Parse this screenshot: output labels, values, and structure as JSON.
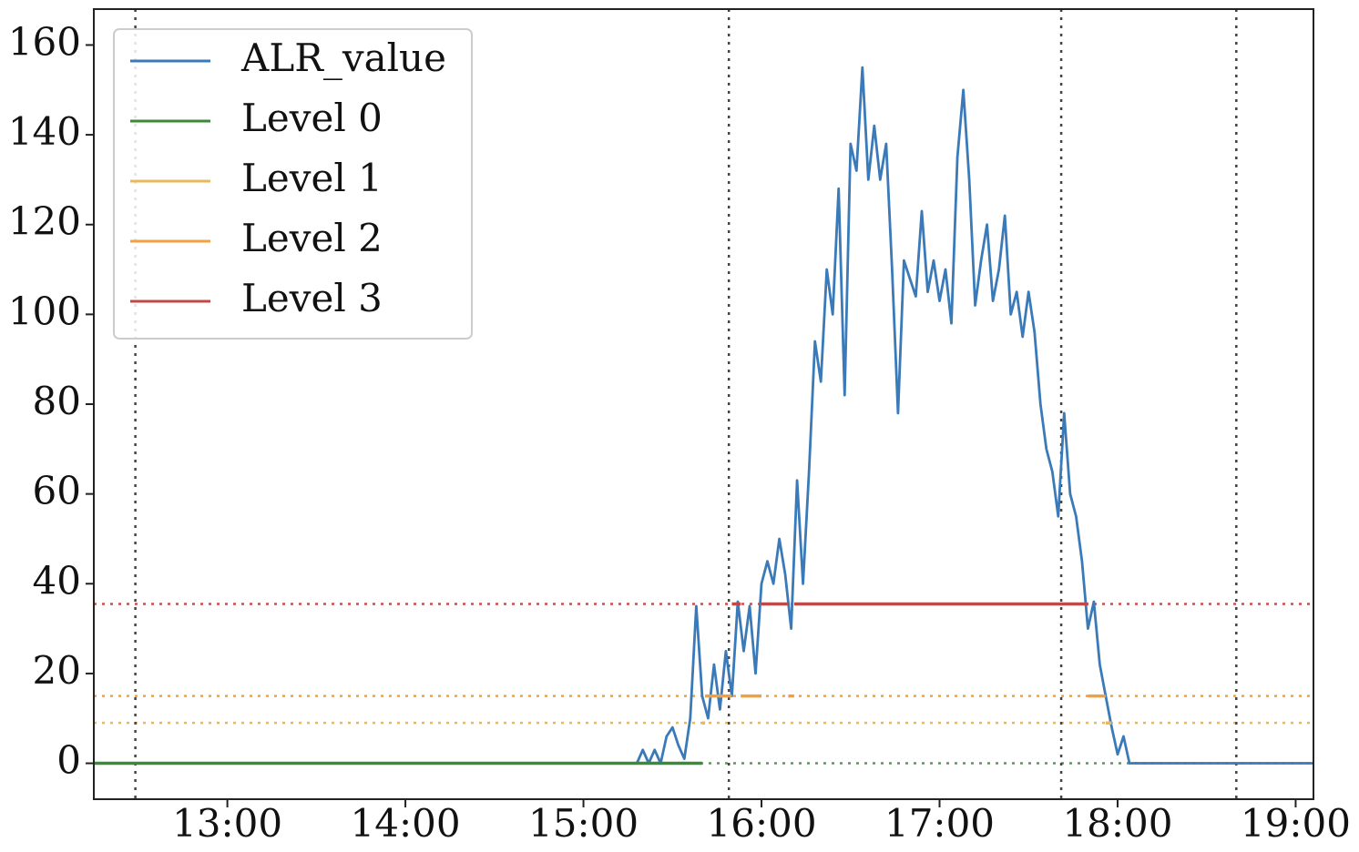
{
  "chart_data": {
    "type": "line",
    "xlim": [
      "12:15",
      "19:06"
    ],
    "xticks": [
      "13:00",
      "14:00",
      "15:00",
      "16:00",
      "17:00",
      "18:00",
      "19:00"
    ],
    "ylim": [
      -8,
      168
    ],
    "yticks": [
      0,
      20,
      40,
      60,
      80,
      100,
      120,
      140,
      160
    ],
    "legend": "upper left",
    "thresholds": [
      {
        "value": 0,
        "color": "#5a9a5a"
      },
      {
        "value": 9,
        "color": "#e8b85a"
      },
      {
        "value": 15,
        "color": "#f0a040"
      },
      {
        "value": 35.5,
        "color": "#c85050"
      }
    ],
    "vlines": [
      "12:29",
      "15:49",
      "17:41",
      "18:40"
    ],
    "series": [
      {
        "name": "ALR_value",
        "color": "#3a7ab8",
        "x": [
          "12:15",
          "15:18",
          "15:20",
          "15:22",
          "15:24",
          "15:26",
          "15:28",
          "15:30",
          "15:32",
          "15:34",
          "15:36",
          "15:38",
          "15:40",
          "15:42",
          "15:44",
          "15:46",
          "15:48",
          "15:50",
          "15:52",
          "15:54",
          "15:56",
          "15:58",
          "16:00",
          "16:02",
          "16:04",
          "16:06",
          "16:08",
          "16:10",
          "16:12",
          "16:14",
          "16:16",
          "16:18",
          "16:20",
          "16:22",
          "16:24",
          "16:26",
          "16:28",
          "16:30",
          "16:32",
          "16:34",
          "16:36",
          "16:38",
          "16:40",
          "16:42",
          "16:44",
          "16:46",
          "16:48",
          "16:50",
          "16:52",
          "16:54",
          "16:56",
          "16:58",
          "17:00",
          "17:02",
          "17:04",
          "17:06",
          "17:08",
          "17:10",
          "17:12",
          "17:14",
          "17:16",
          "17:18",
          "17:20",
          "17:22",
          "17:24",
          "17:26",
          "17:28",
          "17:30",
          "17:32",
          "17:34",
          "17:36",
          "17:38",
          "17:40",
          "17:42",
          "17:44",
          "17:46",
          "17:48",
          "17:50",
          "17:52",
          "17:54",
          "17:56",
          "17:58",
          "18:00",
          "18:02",
          "18:04",
          "18:06",
          "19:06"
        ],
        "values": [
          0,
          0,
          3,
          0,
          3,
          0,
          6,
          8,
          4,
          1,
          10,
          35,
          15,
          10,
          22,
          12,
          25,
          15,
          36,
          25,
          35,
          20,
          40,
          45,
          40,
          50,
          42,
          30,
          63,
          40,
          65,
          94,
          85,
          110,
          100,
          128,
          82,
          138,
          132,
          155,
          130,
          142,
          130,
          138,
          110,
          78,
          112,
          108,
          104,
          123,
          105,
          112,
          103,
          110,
          98,
          135,
          150,
          130,
          102,
          112,
          120,
          103,
          110,
          122,
          100,
          105,
          95,
          105,
          96,
          80,
          70,
          65,
          55,
          78,
          60,
          55,
          45,
          30,
          36,
          22,
          15,
          8,
          2,
          6,
          0,
          0,
          0
        ]
      },
      {
        "name": "Level 0",
        "color": "#3a8a3a",
        "x": [
          "12:15",
          "15:40",
          "17:58",
          "19:06"
        ],
        "values": [
          0,
          0,
          null,
          0
        ]
      },
      {
        "name": "Level 1",
        "color": "#e8b85a",
        "x": [
          "15:40",
          "15:41",
          "15:41",
          "17:56",
          "17:58"
        ],
        "values": [
          9,
          9,
          null,
          9,
          9
        ]
      },
      {
        "name": "Level 2",
        "color": "#f0a040",
        "x": [
          "15:41",
          "15:50",
          "15:50",
          "15:53",
          "16:00",
          "16:00",
          "16:09",
          "16:11",
          "16:11",
          "17:50",
          "17:56"
        ],
        "values": [
          15,
          15,
          null,
          15,
          15,
          null,
          15,
          15,
          null,
          15,
          15
        ]
      },
      {
        "name": "Level 3",
        "color": "#c04848",
        "x": [
          "15:50",
          "15:53",
          "15:53",
          "16:00",
          "16:09",
          "16:09",
          "16:11",
          "17:50"
        ],
        "values": [
          35.5,
          35.5,
          null,
          35.5,
          35.5,
          null,
          35.5,
          35.5
        ]
      }
    ]
  }
}
